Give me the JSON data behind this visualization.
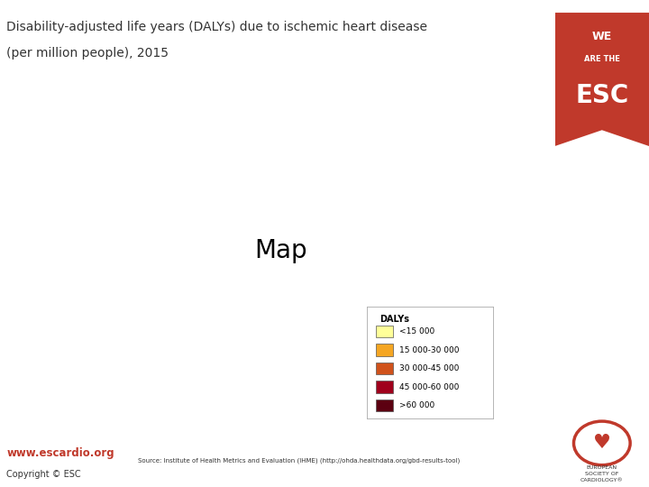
{
  "title_line1": "Disability-adjusted life years (DALYs) due to ischemic heart disease",
  "title_line2": "(per million people), 2015",
  "title_fontsize": 10,
  "title_color": "#333333",
  "background_color": "#ffffff",
  "legend_title": "DALYs",
  "legend_labels": [
    "<15 000",
    "15 000-30 000",
    "30 000-45 000",
    "45 000-60 000",
    ">60 000"
  ],
  "legend_colors": [
    "#FFFF99",
    "#F5A623",
    "#D0521B",
    "#A0001C",
    "#5C0011"
  ],
  "source_text": "Source: Institute of Health Metrics and Evaluation (IHME) (http://ohda.healthdata.org/gbd-results-tool)",
  "www_text": "www.escardio.org",
  "copyright_text": "Copyright © ESC",
  "esc_ribbon_color": "#C0392B",
  "top_bar_color": "#C0392B",
  "map_ocean_color": "#d6e8f5",
  "map_land_default": "#c8c8c8",
  "country_colors": {
    "Iceland": "#F5A623",
    "Norway": "#F5A623",
    "Sweden": "#F5A623",
    "Finland": "#F5A623",
    "Denmark": "#F5A623",
    "Ireland": "#F5A623",
    "United Kingdom": "#F5A623",
    "Netherlands": "#FFFF99",
    "Belgium": "#F5A623",
    "France": "#FFFF99",
    "Spain": "#FFFF99",
    "Portugal": "#F5A623",
    "Germany": "#F5A623",
    "Switzerland": "#FFFF99",
    "Austria": "#F5A623",
    "Italy": "#F5A623",
    "Poland": "#D0521B",
    "Czech Republic": "#F5A623",
    "Czechia": "#F5A623",
    "Slovakia": "#F5A623",
    "Hungary": "#D0521B",
    "Romania": "#A0001C",
    "Bulgaria": "#A0001C",
    "Serbia": "#A0001C",
    "Croatia": "#D0521B",
    "Slovenia": "#F5A623",
    "Greece": "#F5A623",
    "Albania": "#D0521B",
    "North Macedonia": "#A0001C",
    "Bosnia and Herzegovina": "#A0001C",
    "Bosnia and Herz.": "#A0001C",
    "Kosovo": "#A0001C",
    "Montenegro": "#D0521B",
    "Moldova": "#A0001C",
    "Ukraine": "#5C0011",
    "Belarus": "#5C0011",
    "Russia": "#5C0011",
    "Estonia": "#5C0011",
    "Latvia": "#5C0011",
    "Lithuania": "#5C0011",
    "Turkey": "#D0521B",
    "Georgia": "#A0001C",
    "Armenia": "#A0001C",
    "Azerbaijan": "#5C0011",
    "Kazakhstan": "#A0001C",
    "Uzbekistan": "#5C0011",
    "Turkmenistan": "#5C0011",
    "Morocco": "#F5A623",
    "Algeria": "#F5A623",
    "Tunisia": "#F5A623",
    "Libya": "#F5A623",
    "Egypt": "#D0521B",
    "Luxembourg": "#FFFF99",
    "Malta": "#F5A623",
    "Cyprus": "#F5A623",
    "Syria": "#D0521B",
    "Iraq": "#D0521B",
    "Iran": "#D0521B",
    "Jordan": "#D0521B",
    "Israel": "#F5A623",
    "Lebanon": "#D0521B",
    "Saudi Arabia": "#D0521B",
    "Kyrgyzstan": "#5C0011",
    "Tajikistan": "#5C0011"
  }
}
